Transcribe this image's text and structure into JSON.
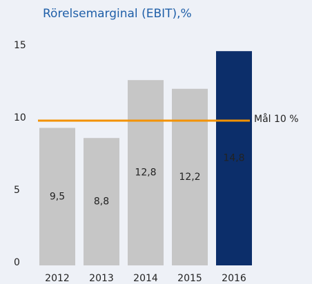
{
  "chart_data": {
    "type": "bar",
    "title": "Rörelsemarginal (EBIT),%",
    "categories": [
      "2012",
      "2013",
      "2014",
      "2015",
      "2016"
    ],
    "values": [
      9.5,
      8.8,
      12.8,
      12.2,
      14.8
    ],
    "value_labels": [
      "9,5",
      "8,8",
      "12,8",
      "12,2",
      "14,8"
    ],
    "colors": [
      "#c6c6c6",
      "#c6c6c6",
      "#c6c6c6",
      "#c6c6c6",
      "#0c2e6a"
    ],
    "label_colors": [
      "#222222",
      "#222222",
      "#222222",
      "#222222",
      "#ffffff"
    ],
    "ylim": [
      0,
      15
    ],
    "yticks": [
      0,
      5,
      10,
      15
    ],
    "grid": false,
    "target": {
      "value": 10,
      "label": "Mål 10 %",
      "color": "#f39200"
    }
  }
}
